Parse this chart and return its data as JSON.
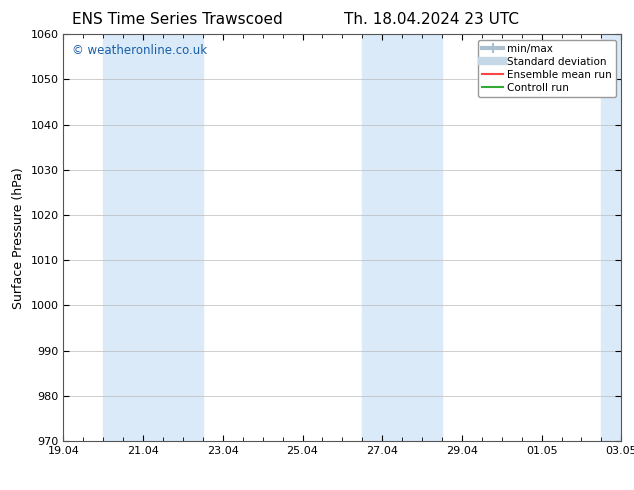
{
  "title_left": "ENS Time Series Trawscoed",
  "title_right": "Th. 18.04.2024 23 UTC",
  "ylabel": "Surface Pressure (hPa)",
  "xlim_start": 0,
  "xlim_end": 14,
  "ylim": [
    970,
    1060
  ],
  "yticks": [
    970,
    980,
    990,
    1000,
    1010,
    1020,
    1030,
    1040,
    1050,
    1060
  ],
  "xtick_labels": [
    "19.04",
    "21.04",
    "23.04",
    "25.04",
    "27.04",
    "29.04",
    "01.05",
    "03.05"
  ],
  "xtick_positions": [
    0,
    2,
    4,
    6,
    8,
    10,
    12,
    14
  ],
  "background_color": "#ffffff",
  "plot_bg_color": "#ffffff",
  "shaded_bands": [
    {
      "x_start": 1.0,
      "x_end": 3.5,
      "color": "#daeaf8"
    },
    {
      "x_start": 7.5,
      "x_end": 9.5,
      "color": "#daeaf8"
    },
    {
      "x_start": 13.5,
      "x_end": 14.2,
      "color": "#daeaf8"
    }
  ],
  "legend_items": [
    {
      "label": "min/max",
      "color": "#aabfd0",
      "lw": 3
    },
    {
      "label": "Standard deviation",
      "color": "#c5d8e8",
      "lw": 6
    },
    {
      "label": "Ensemble mean run",
      "color": "#ff4444",
      "lw": 1.5
    },
    {
      "label": "Controll run",
      "color": "#33aa33",
      "lw": 1.5
    }
  ],
  "watermark": "© weatheronline.co.uk",
  "watermark_color": "#1a5fa8",
  "title_fontsize": 11,
  "axis_label_fontsize": 9,
  "tick_fontsize": 8,
  "legend_fontsize": 7.5
}
